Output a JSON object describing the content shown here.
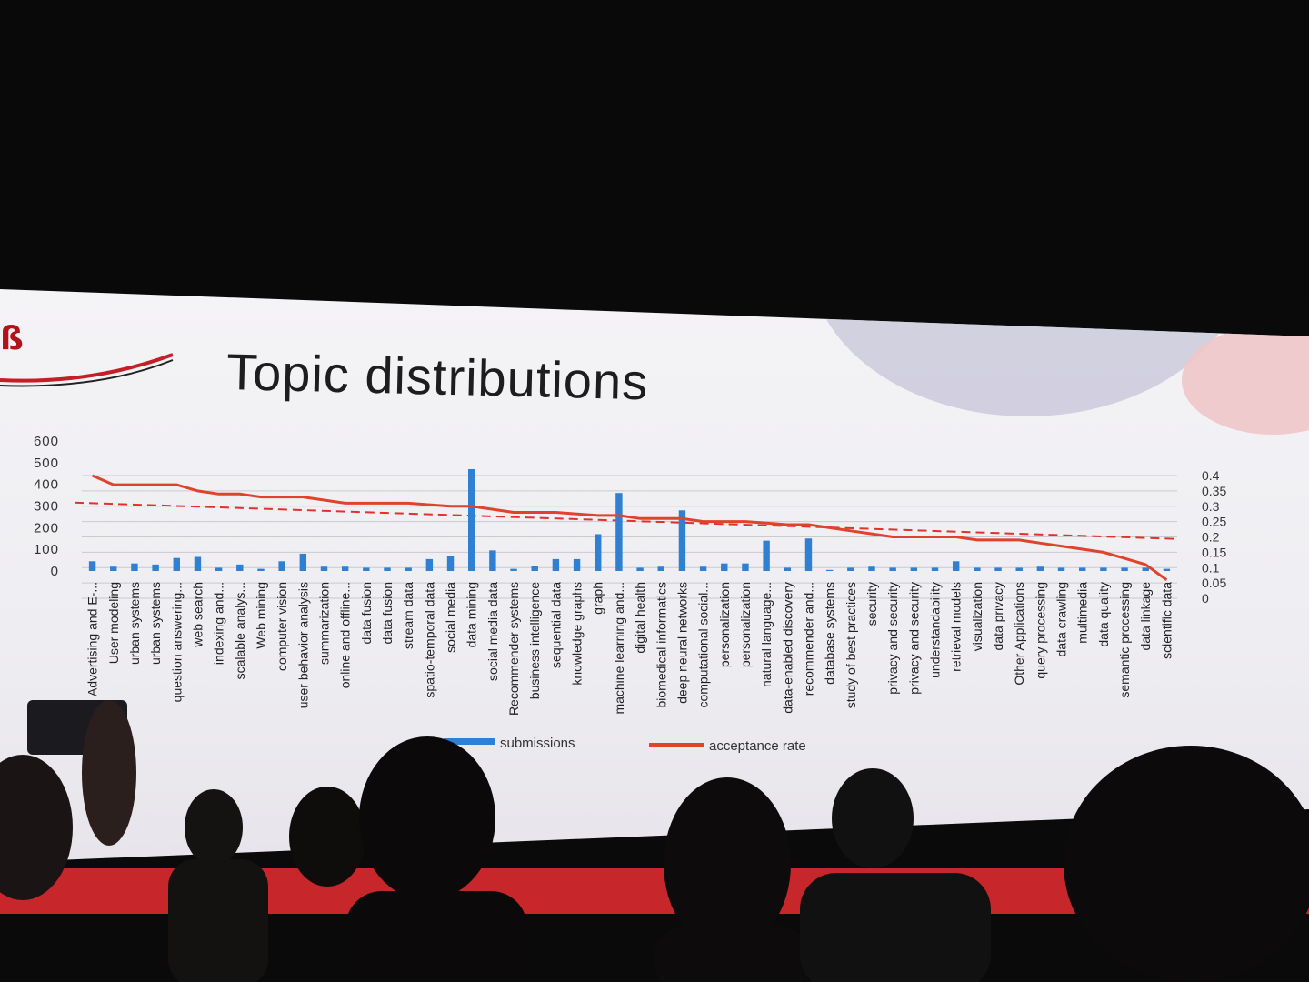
{
  "slide": {
    "title": "Topic distributions"
  },
  "chart_data": {
    "type": "bar",
    "title": "Topic distributions",
    "categories": [
      "Advertising and E-...",
      "User modeling",
      "urban systems",
      "urban systems",
      "question answering...",
      "web search",
      "indexing and...",
      "scalable analys...",
      "Web mining",
      "computer vision",
      "user behavior analysis",
      "summarization",
      "online and offline...",
      "data fusion",
      "data fusion",
      "stream data",
      "spatio-temporal data",
      "social media",
      "data mining",
      "social media data",
      "Recommender systems",
      "business intelligence",
      "sequential data",
      "knowledge graphs",
      "graph",
      "machine learning and...",
      "digital health",
      "biomedical informatics",
      "deep neural networks",
      "computational social...",
      "personalization",
      "personalization",
      "natural language...",
      "data-enabled discovery",
      "recommender and...",
      "database systems",
      "study of best practices",
      "security",
      "privacy and security",
      "privacy and security",
      "understandability",
      "retrieval models",
      "visualization",
      "data privacy",
      "Other Applications",
      "query processing",
      "data crawling",
      "multimedia",
      "data quality",
      "semantic processing",
      "data linkage",
      "scientific data"
    ],
    "series": [
      {
        "name": "submissions",
        "axis": "left",
        "color": "#2f7fd3",
        "values": [
          45,
          20,
          35,
          30,
          60,
          65,
          15,
          30,
          10,
          45,
          80,
          20,
          20,
          15,
          15,
          15,
          55,
          70,
          470,
          95,
          10,
          25,
          55,
          55,
          170,
          360,
          15,
          20,
          280,
          20,
          35,
          35,
          140,
          15,
          150,
          5,
          15,
          20,
          15,
          15,
          15,
          45,
          15,
          15,
          15,
          20,
          15,
          15,
          15,
          15,
          15,
          10
        ]
      },
      {
        "name": "acceptance rate",
        "axis": "right",
        "color": "#e0432c",
        "values": [
          0.4,
          0.37,
          0.37,
          0.37,
          0.37,
          0.35,
          0.34,
          0.34,
          0.33,
          0.33,
          0.33,
          0.32,
          0.31,
          0.31,
          0.31,
          0.31,
          0.305,
          0.3,
          0.3,
          0.29,
          0.28,
          0.28,
          0.28,
          0.275,
          0.27,
          0.27,
          0.26,
          0.26,
          0.26,
          0.25,
          0.25,
          0.25,
          0.245,
          0.24,
          0.24,
          0.23,
          0.22,
          0.21,
          0.2,
          0.2,
          0.2,
          0.2,
          0.19,
          0.19,
          0.19,
          0.18,
          0.17,
          0.16,
          0.15,
          0.13,
          0.11,
          0.06
        ]
      }
    ],
    "average_acceptance": 0.3,
    "y_left_ticks": [
      "600",
      "500",
      "400",
      "300",
      "200",
      "100",
      "0"
    ],
    "y_right_ticks": [
      "0.4",
      "0.35",
      "0.3",
      "0.25",
      "0.2",
      "0.15",
      "0.1",
      "0.05",
      "0"
    ],
    "ylim_left": [
      0,
      600
    ],
    "ylim_right": [
      0,
      0.4
    ],
    "legend": [
      "submissions",
      "acceptance rate"
    ],
    "legend_position": "bottom",
    "grid": true
  }
}
